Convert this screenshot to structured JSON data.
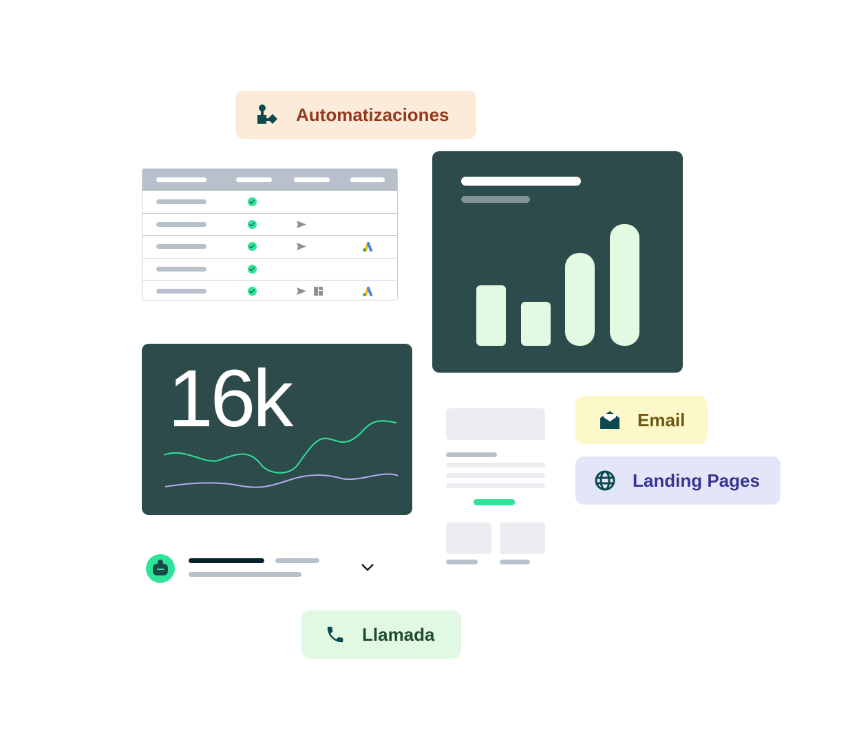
{
  "chips": {
    "automations": {
      "label": "Automatizaciones",
      "icon": "automation-icon",
      "bg": "#fcebd9",
      "color": "#94391e"
    },
    "email": {
      "label": "Email",
      "icon": "envelope-open-icon",
      "bg": "#fcf8c9",
      "color": "#6e5712"
    },
    "landing": {
      "label": "Landing Pages",
      "icon": "globe-icon",
      "bg": "#e2e6f8",
      "color": "#3a348f"
    },
    "call": {
      "label": "Llamada",
      "icon": "phone-icon",
      "bg": "#e1f8e3",
      "color": "#1f4d2a"
    }
  },
  "stats_card": {
    "value": "16k",
    "bg": "#2d4b4a",
    "line_colors": [
      "#2fe39a",
      "#b7a9f2"
    ]
  },
  "bar_card": {
    "bg": "#2d4b4a",
    "bar_color": "#e2fae2",
    "bar_levels": [
      0.5,
      0.36,
      0.76,
      1.0
    ]
  },
  "table": {
    "rows": [
      {
        "check": true,
        "send": false,
        "layout": false,
        "ads": false
      },
      {
        "check": true,
        "send": true,
        "layout": false,
        "ads": false
      },
      {
        "check": true,
        "send": true,
        "layout": false,
        "ads": true
      },
      {
        "check": true,
        "send": false,
        "layout": false,
        "ads": false
      },
      {
        "check": true,
        "send": true,
        "layout": true,
        "ads": true
      }
    ]
  },
  "accent": "#2fe39a"
}
